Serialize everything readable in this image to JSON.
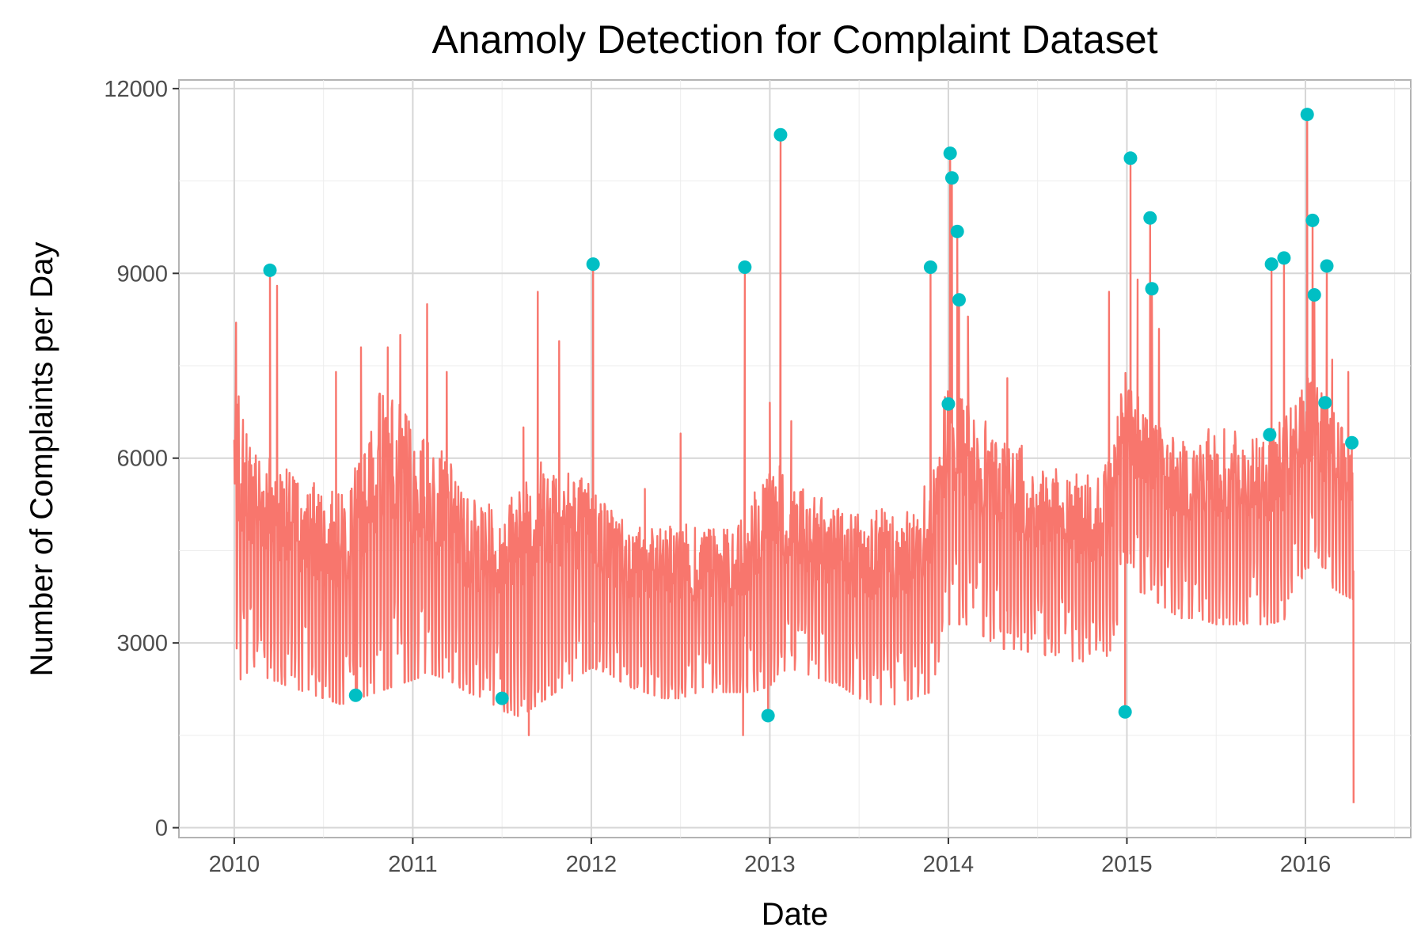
{
  "chart_data": {
    "type": "line",
    "title": "Anamoly Detection for Complaint Dataset",
    "xlabel": "Date",
    "ylabel": "Number of Complaints per Day",
    "x_ticks": [
      "2010",
      "2011",
      "2012",
      "2013",
      "2014",
      "2015",
      "2016"
    ],
    "y_ticks": [
      "0",
      "3000",
      "6000",
      "9000",
      "12000"
    ],
    "xlim": [
      2009.69,
      2016.59
    ],
    "ylim": [
      -160,
      12140
    ],
    "grid": true,
    "legend": "none",
    "line_color": "#F8766D",
    "anomaly_color": "#00BFC4",
    "series_envelope": {
      "x": [
        2010.0,
        2010.1,
        2010.2,
        2010.3,
        2010.4,
        2010.5,
        2010.6,
        2010.7,
        2010.8,
        2010.9,
        2011.0,
        2011.1,
        2011.2,
        2011.3,
        2011.4,
        2011.5,
        2011.6,
        2011.7,
        2011.8,
        2011.9,
        2012.0,
        2012.1,
        2012.2,
        2012.3,
        2012.4,
        2012.5,
        2012.6,
        2012.7,
        2012.8,
        2012.9,
        2013.0,
        2013.1,
        2013.2,
        2013.3,
        2013.4,
        2013.5,
        2013.6,
        2013.7,
        2013.8,
        2013.9,
        2014.0,
        2014.1,
        2014.2,
        2014.3,
        2014.4,
        2014.5,
        2014.6,
        2014.7,
        2014.8,
        2014.9,
        2015.0,
        2015.1,
        2015.2,
        2015.3,
        2015.4,
        2015.5,
        2015.6,
        2015.7,
        2015.8,
        2015.9,
        2016.0,
        2016.1,
        2016.2,
        2016.27
      ],
      "low": [
        2300,
        2600,
        2400,
        2300,
        2200,
        2100,
        2000,
        2100,
        2200,
        2300,
        2400,
        2500,
        2400,
        2200,
        2100,
        1900,
        1800,
        2000,
        2200,
        2400,
        2600,
        2500,
        2300,
        2200,
        2100,
        2100,
        2200,
        2200,
        2200,
        2200,
        2300,
        2600,
        2500,
        2400,
        2300,
        2100,
        2000,
        2000,
        2100,
        2200,
        3300,
        3300,
        3100,
        2900,
        2900,
        2800,
        2800,
        2700,
        2700,
        2800,
        3900,
        3800,
        3600,
        3400,
        3400,
        3300,
        3300,
        3300,
        3300,
        3400,
        4200,
        4000,
        3800,
        3700
      ],
      "high": [
        7500,
        6500,
        6300,
        6000,
        5900,
        5700,
        5600,
        6200,
        7500,
        7300,
        6700,
        6500,
        6200,
        5600,
        5400,
        5500,
        5800,
        6200,
        6300,
        6000,
        5800,
        5400,
        5200,
        5000,
        5000,
        5100,
        5200,
        5000,
        5000,
        5500,
        6300,
        6000,
        5600,
        5500,
        5300,
        5300,
        5400,
        5300,
        5300,
        6000,
        7500,
        7200,
        6800,
        6600,
        6400,
        6200,
        6000,
        5900,
        5900,
        6200,
        7800,
        7200,
        6700,
        6500,
        6600,
        6700,
        6600,
        6600,
        6600,
        6900,
        7500,
        7200,
        6800,
        6700
      ]
    },
    "spikes": [
      {
        "x": 2010.01,
        "y": 8200
      },
      {
        "x": 2010.24,
        "y": 8800
      },
      {
        "x": 2010.57,
        "y": 7400
      },
      {
        "x": 2010.71,
        "y": 7800
      },
      {
        "x": 2010.86,
        "y": 7800
      },
      {
        "x": 2010.93,
        "y": 8000
      },
      {
        "x": 2011.08,
        "y": 8500
      },
      {
        "x": 2011.19,
        "y": 7400
      },
      {
        "x": 2011.62,
        "y": 6500
      },
      {
        "x": 2011.7,
        "y": 8700
      },
      {
        "x": 2011.82,
        "y": 7900
      },
      {
        "x": 2012.3,
        "y": 5500
      },
      {
        "x": 2012.5,
        "y": 6400
      },
      {
        "x": 2013.0,
        "y": 6900
      },
      {
        "x": 2013.12,
        "y": 6600
      },
      {
        "x": 2014.11,
        "y": 8300
      },
      {
        "x": 2014.33,
        "y": 7300
      },
      {
        "x": 2014.9,
        "y": 8700
      },
      {
        "x": 2015.06,
        "y": 8900
      },
      {
        "x": 2015.18,
        "y": 8100
      },
      {
        "x": 2015.98,
        "y": 7100
      },
      {
        "x": 2016.15,
        "y": 7600
      },
      {
        "x": 2016.24,
        "y": 7400
      }
    ],
    "dips": [
      {
        "x": 2012.85,
        "y": 1500
      },
      {
        "x": 2011.65,
        "y": 1500
      },
      {
        "x": 2016.27,
        "y": 400
      }
    ],
    "anomalies": {
      "x": [
        2010.2,
        2010.68,
        2011.5,
        2012.01,
        2012.86,
        2012.99,
        2013.06,
        2013.9,
        2014.0,
        2014.01,
        2014.02,
        2014.05,
        2014.06,
        2014.99,
        2015.02,
        2015.13,
        2015.14,
        2015.8,
        2015.81,
        2015.88,
        2016.01,
        2016.04,
        2016.05,
        2016.11,
        2016.12,
        2016.26
      ],
      "y": [
        9050,
        2150,
        2100,
        9150,
        9100,
        1820,
        11250,
        9100,
        6880,
        10950,
        10550,
        9680,
        8570,
        1880,
        10870,
        9900,
        8750,
        6380,
        9150,
        9250,
        11580,
        9860,
        8650,
        6900,
        9120,
        6250
      ]
    }
  }
}
